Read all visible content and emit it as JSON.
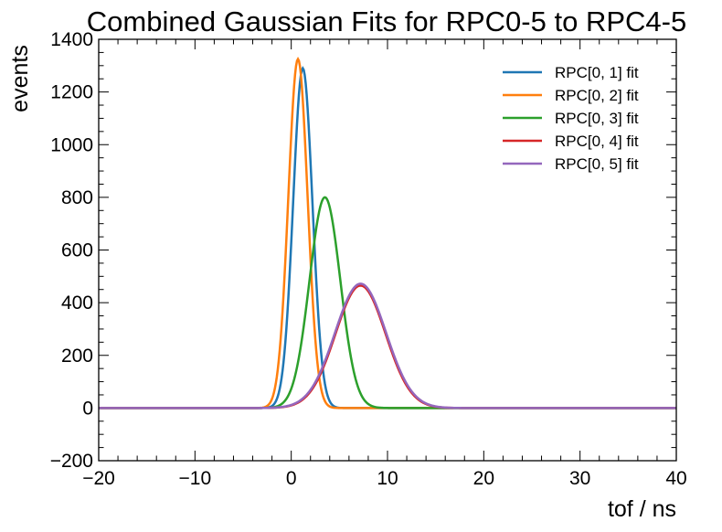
{
  "chart_data": {
    "type": "line",
    "title": "Combined Gaussian Fits for RPC0-5 to RPC4-5",
    "xlabel": "tof / ns",
    "ylabel": "events",
    "xlim": [
      -20,
      40
    ],
    "ylim": [
      -200,
      1400
    ],
    "x_ticks": [
      -20,
      -10,
      0,
      10,
      20,
      30,
      40
    ],
    "x_tick_labels": [
      "−20",
      "−10",
      "0",
      "10",
      "20",
      "30",
      "40"
    ],
    "y_ticks": [
      -200,
      0,
      200,
      400,
      600,
      800,
      1000,
      1200,
      1400
    ],
    "y_tick_labels": [
      "−200",
      "0",
      "200",
      "400",
      "600",
      "800",
      "1000",
      "1200",
      "1400"
    ],
    "grid": false,
    "legend_position": "top-right",
    "series": [
      {
        "name": "RPC[0, 1] fit",
        "color": "#1f77b4",
        "shape": "gaussian",
        "amplitude": 1290,
        "mean": 1.2,
        "sigma": 1.0
      },
      {
        "name": "RPC[0, 2] fit",
        "color": "#ff7f0e",
        "shape": "gaussian",
        "amplitude": 1325,
        "mean": 0.7,
        "sigma": 1.0
      },
      {
        "name": "RPC[0, 3] fit",
        "color": "#2ca02c",
        "shape": "gaussian",
        "amplitude": 800,
        "mean": 3.5,
        "sigma": 1.6
      },
      {
        "name": "RPC[0, 4] fit",
        "color": "#d62728",
        "shape": "gaussian",
        "amplitude": 465,
        "mean": 7.2,
        "sigma": 2.6
      },
      {
        "name": "RPC[0, 5] fit",
        "color": "#9467bd",
        "shape": "gaussian",
        "amplitude": 472,
        "mean": 7.2,
        "sigma": 2.65
      }
    ]
  }
}
